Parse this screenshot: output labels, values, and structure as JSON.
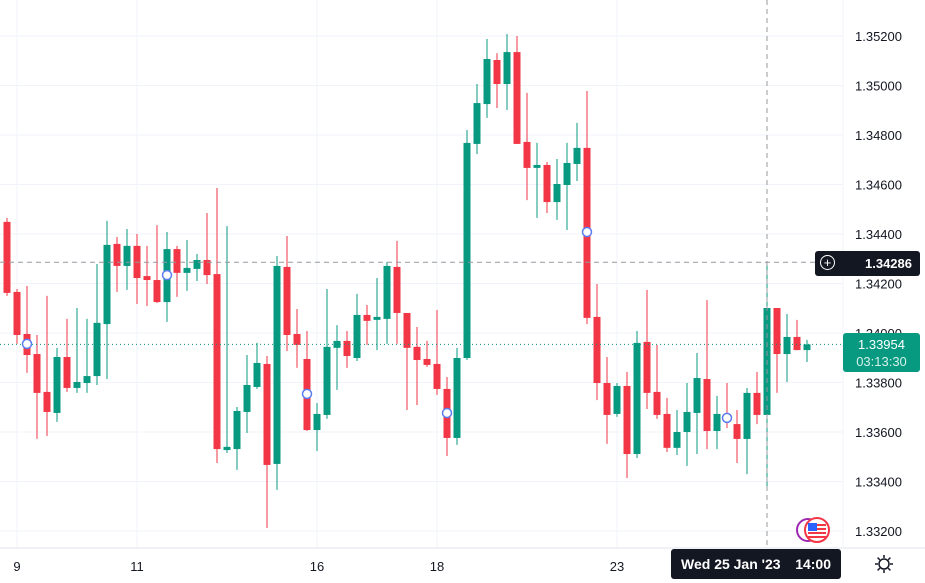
{
  "chart_data": {
    "type": "candlestick",
    "colors": {
      "up": "#089981",
      "down": "#F23645",
      "crosshair": "#9598a1",
      "text": "#131722"
    },
    "ylim": [
      1.3314,
      1.353
    ],
    "y_ticks": [
      "1.35200",
      "1.35000",
      "1.34800",
      "1.34600",
      "1.34400",
      "1.34200",
      "1.34000",
      "1.33800",
      "1.33600",
      "1.33400",
      "1.33200"
    ],
    "x_ticks": [
      {
        "label": "9",
        "candle": 1
      },
      {
        "label": "11",
        "candle": 13
      },
      {
        "label": "16",
        "candle": 31
      },
      {
        "label": "18",
        "candle": 43
      },
      {
        "label": "23",
        "candle": 61
      }
    ],
    "grid": true,
    "candles_ohlc": [
      [
        1.34449,
        1.34465,
        1.3415,
        1.34162
      ],
      [
        1.34166,
        1.34178,
        1.33956,
        1.33992
      ],
      [
        1.33996,
        1.3419,
        1.33839,
        1.33911
      ],
      [
        1.33915,
        1.33992,
        1.33572,
        1.33758
      ],
      [
        1.33762,
        1.3415,
        1.33584,
        1.33681
      ],
      [
        1.33677,
        1.3394,
        1.33641,
        1.33903
      ],
      [
        1.33903,
        1.34057,
        1.33762,
        1.33778
      ],
      [
        1.33778,
        1.34101,
        1.33758,
        1.33802
      ],
      [
        1.33798,
        1.34057,
        1.33758,
        1.33826
      ],
      [
        1.33826,
        1.34279,
        1.3379,
        1.34041
      ],
      [
        1.34036,
        1.34453,
        1.33814,
        1.34356
      ],
      [
        1.3436,
        1.34388,
        1.34166,
        1.34271
      ],
      [
        1.34271,
        1.3442,
        1.34174,
        1.34352
      ],
      [
        1.34352,
        1.344,
        1.34117,
        1.34222
      ],
      [
        1.3423,
        1.34352,
        1.34109,
        1.34214
      ],
      [
        1.34214,
        1.34436,
        1.34121,
        1.34125
      ],
      [
        1.34125,
        1.34408,
        1.34045,
        1.34339
      ],
      [
        1.34339,
        1.34352,
        1.34146,
        1.34243
      ],
      [
        1.34243,
        1.34376,
        1.3417,
        1.34263
      ],
      [
        1.34259,
        1.34319,
        1.3421,
        1.34295
      ],
      [
        1.34295,
        1.34485,
        1.34198,
        1.34234
      ],
      [
        1.34238,
        1.34586,
        1.33475,
        1.33531
      ],
      [
        1.33527,
        1.34432,
        1.33515,
        1.3354
      ],
      [
        1.33531,
        1.33701,
        1.33447,
        1.33685
      ],
      [
        1.33681,
        1.33911,
        1.33596,
        1.3379
      ],
      [
        1.33782,
        1.3396,
        1.33774,
        1.33879
      ],
      [
        1.33875,
        1.33907,
        1.33212,
        1.33467
      ],
      [
        1.33471,
        1.34311,
        1.33366,
        1.34271
      ],
      [
        1.34267,
        1.34392,
        1.33927,
        1.33992
      ],
      [
        1.33996,
        1.34097,
        1.33859,
        1.33952
      ],
      [
        1.33895,
        1.34008,
        1.33604,
        1.33608
      ],
      [
        1.33608,
        1.33717,
        1.33523,
        1.33673
      ],
      [
        1.33669,
        1.34178,
        1.33653,
        1.33944
      ],
      [
        1.3394,
        1.34032,
        1.3377,
        1.33968
      ],
      [
        1.33968,
        1.34008,
        1.33859,
        1.33907
      ],
      [
        1.33899,
        1.34158,
        1.33887,
        1.34073
      ],
      [
        1.34073,
        1.34113,
        1.33952,
        1.34049
      ],
      [
        1.34053,
        1.34222,
        1.33931,
        1.34065
      ],
      [
        1.34057,
        1.34287,
        1.33956,
        1.34271
      ],
      [
        1.34267,
        1.34372,
        1.33956,
        1.34081
      ],
      [
        1.34081,
        1.34081,
        1.33689,
        1.3394
      ],
      [
        1.33944,
        1.34024,
        1.33709,
        1.33891
      ],
      [
        1.33895,
        1.33968,
        1.33863,
        1.33871
      ],
      [
        1.33875,
        1.34093,
        1.3375,
        1.33774
      ],
      [
        1.33774,
        1.33822,
        1.33503,
        1.33576
      ],
      [
        1.33576,
        1.3394,
        1.33548,
        1.33899
      ],
      [
        1.33899,
        1.3482,
        1.33891,
        1.34768
      ],
      [
        1.34764,
        1.35006,
        1.34723,
        1.34929
      ],
      [
        1.34925,
        1.35188,
        1.34869,
        1.35107
      ],
      [
        1.35103,
        1.35131,
        1.34909,
        1.35006
      ],
      [
        1.35006,
        1.35208,
        1.34901,
        1.35135
      ],
      [
        1.35135,
        1.352,
        1.34764,
        1.34764
      ],
      [
        1.34772,
        1.3497,
        1.34537,
        1.34667
      ],
      [
        1.34667,
        1.34768,
        1.34465,
        1.34679
      ],
      [
        1.34679,
        1.34691,
        1.34485,
        1.34529
      ],
      [
        1.34529,
        1.34703,
        1.34457,
        1.34602
      ],
      [
        1.34598,
        1.34768,
        1.34416,
        1.34687
      ],
      [
        1.34683,
        1.34849,
        1.34614,
        1.34748
      ],
      [
        1.34748,
        1.34978,
        1.34036,
        1.34061
      ],
      [
        1.34065,
        1.34198,
        1.33729,
        1.33798
      ],
      [
        1.33798,
        1.33903,
        1.33552,
        1.33669
      ],
      [
        1.33673,
        1.33798,
        1.33661,
        1.33786
      ],
      [
        1.33786,
        1.33843,
        1.33414,
        1.33511
      ],
      [
        1.33511,
        1.34008,
        1.33495,
        1.3396
      ],
      [
        1.33964,
        1.34174,
        1.33693,
        1.33758
      ],
      [
        1.33762,
        1.33952,
        1.33653,
        1.33669
      ],
      [
        1.33673,
        1.33738,
        1.33519,
        1.33536
      ],
      [
        1.33536,
        1.33689,
        1.33507,
        1.336
      ],
      [
        1.336,
        1.33798,
        1.33463,
        1.33681
      ],
      [
        1.33677,
        1.33919,
        1.33511,
        1.33818
      ],
      [
        1.33814,
        1.34133,
        1.33531,
        1.33604
      ],
      [
        1.33604,
        1.33746,
        1.33531,
        1.33673
      ],
      [
        1.33673,
        1.33798,
        1.33616,
        1.33641
      ],
      [
        1.33632,
        1.33689,
        1.33475,
        1.33572
      ],
      [
        1.33572,
        1.33778,
        1.3343,
        1.33758
      ],
      [
        1.33758,
        1.33843,
        1.33632,
        1.33669
      ],
      [
        1.33669,
        1.34287,
        1.33378,
        1.34101
      ],
      [
        1.34101,
        1.34101,
        1.33758,
        1.33915
      ],
      [
        1.33915,
        1.34077,
        1.33802,
        1.33984
      ],
      [
        1.33984,
        1.34053,
        1.33931,
        1.33931
      ],
      [
        1.33931,
        1.33972,
        1.33883,
        1.33954
      ]
    ],
    "event_markers": [
      {
        "candle": 2,
        "price": 1.33956
      },
      {
        "candle": 16,
        "price": 1.34234
      },
      {
        "candle": 30,
        "price": 1.33754
      },
      {
        "candle": 44,
        "price": 1.33677
      },
      {
        "candle": 58,
        "price": 1.34408
      },
      {
        "candle": 72,
        "price": 1.33657
      }
    ],
    "crosshair": {
      "candle": 76,
      "price": 1.34286,
      "price_label": "1.34286",
      "date_label": "Wed 25 Jan '23",
      "time_label": "14:00"
    },
    "last_price": {
      "value": 1.33954,
      "label": "1.33954",
      "countdown": "03:13:30"
    }
  },
  "icons": {
    "crosshair_add": "plus-circle-icon",
    "settings": "gear-icon",
    "events": "us-flag-icon"
  }
}
